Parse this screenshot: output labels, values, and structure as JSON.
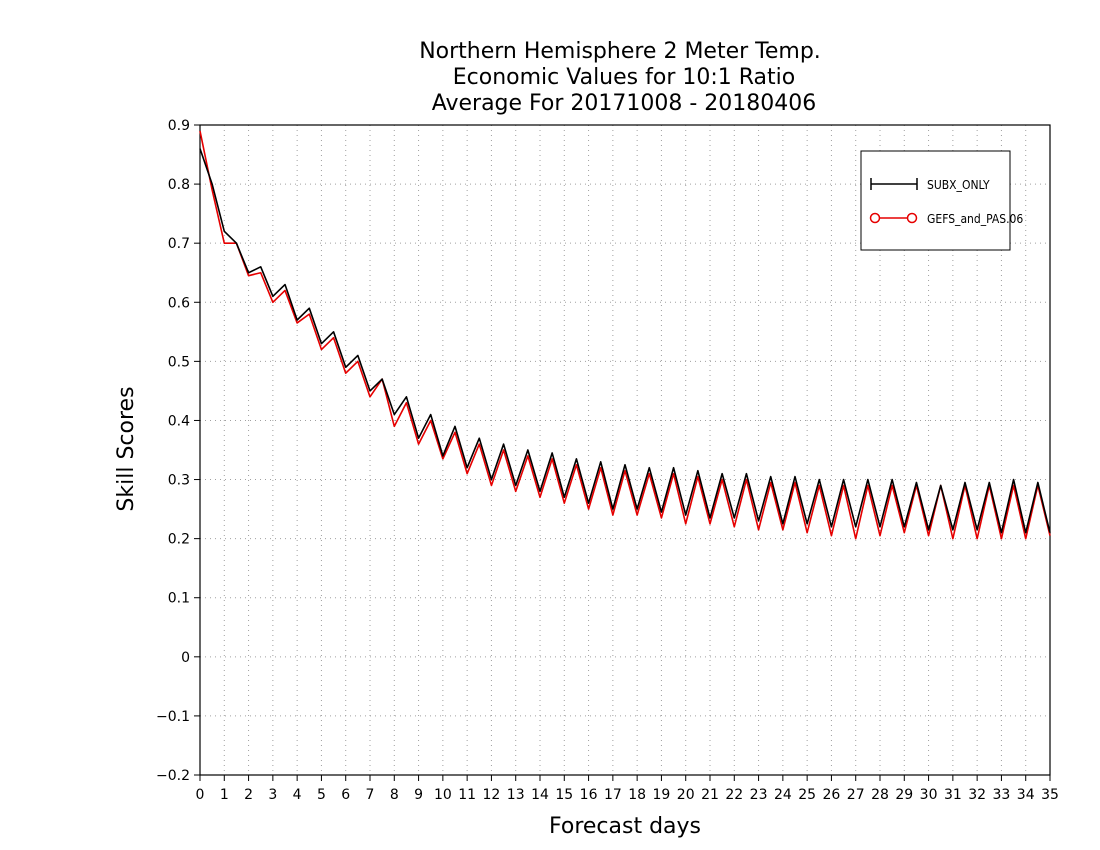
{
  "chart_data": {
    "type": "line",
    "title": [
      "Northern Hemisphere 2 Meter Temp.",
      "Economic Values for 10:1 Ratio",
      "Average For 20171008 - 20180406"
    ],
    "xlabel": "Forecast days",
    "ylabel": "Skill Scores",
    "xlim": [
      0,
      35
    ],
    "ylim": [
      -0.2,
      0.9
    ],
    "xticks": [
      0,
      1,
      2,
      3,
      4,
      5,
      6,
      7,
      8,
      9,
      10,
      11,
      12,
      13,
      14,
      15,
      16,
      17,
      18,
      19,
      20,
      21,
      22,
      23,
      24,
      25,
      26,
      27,
      28,
      29,
      30,
      31,
      32,
      33,
      34,
      35
    ],
    "yticks": [
      -0.2,
      -0.1,
      0,
      0.1,
      0.2,
      0.3,
      0.4,
      0.5,
      0.6,
      0.7,
      0.8,
      0.9
    ],
    "ytick_labels": [
      "−0.2",
      "−0.1",
      "0",
      "0.1",
      "0.2",
      "0.3",
      "0.4",
      "0.5",
      "0.6",
      "0.7",
      "0.8",
      "0.9"
    ],
    "grid": true,
    "legend_position": "top-right",
    "x": [
      0,
      0.5,
      1,
      1.5,
      2,
      2.5,
      3,
      3.5,
      4,
      4.5,
      5,
      5.5,
      6,
      6.5,
      7,
      7.5,
      8,
      8.5,
      9,
      9.5,
      10,
      10.5,
      11,
      11.5,
      12,
      12.5,
      13,
      13.5,
      14,
      14.5,
      15,
      15.5,
      16,
      16.5,
      17,
      17.5,
      18,
      18.5,
      19,
      19.5,
      20,
      20.5,
      21,
      21.5,
      22,
      22.5,
      23,
      23.5,
      24,
      24.5,
      25,
      25.5,
      26,
      26.5,
      27,
      27.5,
      28,
      28.5,
      29,
      29.5,
      30,
      30.5,
      31,
      31.5,
      32,
      32.5,
      33,
      33.5,
      34,
      34.5,
      35
    ],
    "series": [
      {
        "name": "SUBX_ONLY",
        "color": "#000000",
        "marker": "plus",
        "values": [
          0.86,
          0.8,
          0.72,
          0.7,
          0.65,
          0.66,
          0.61,
          0.63,
          0.57,
          0.59,
          0.53,
          0.55,
          0.49,
          0.51,
          0.45,
          0.47,
          0.41,
          0.44,
          0.37,
          0.41,
          0.34,
          0.39,
          0.32,
          0.37,
          0.3,
          0.36,
          0.29,
          0.35,
          0.28,
          0.345,
          0.27,
          0.335,
          0.26,
          0.33,
          0.25,
          0.325,
          0.25,
          0.32,
          0.245,
          0.32,
          0.24,
          0.315,
          0.235,
          0.31,
          0.235,
          0.31,
          0.23,
          0.305,
          0.225,
          0.305,
          0.225,
          0.3,
          0.22,
          0.3,
          0.22,
          0.3,
          0.22,
          0.3,
          0.22,
          0.295,
          0.215,
          0.29,
          0.215,
          0.295,
          0.215,
          0.295,
          0.21,
          0.3,
          0.21,
          0.295,
          0.21
        ]
      },
      {
        "name": "GEFS_and_PAS.06",
        "color": "#e60000",
        "marker": "circle",
        "values": [
          0.89,
          0.79,
          0.7,
          0.7,
          0.645,
          0.65,
          0.6,
          0.62,
          0.565,
          0.58,
          0.52,
          0.54,
          0.48,
          0.5,
          0.44,
          0.47,
          0.39,
          0.43,
          0.36,
          0.4,
          0.335,
          0.38,
          0.31,
          0.36,
          0.29,
          0.35,
          0.28,
          0.34,
          0.27,
          0.335,
          0.26,
          0.325,
          0.25,
          0.32,
          0.24,
          0.315,
          0.24,
          0.31,
          0.235,
          0.31,
          0.225,
          0.305,
          0.225,
          0.3,
          0.22,
          0.3,
          0.215,
          0.295,
          0.215,
          0.295,
          0.21,
          0.29,
          0.205,
          0.29,
          0.2,
          0.29,
          0.205,
          0.29,
          0.21,
          0.29,
          0.205,
          0.29,
          0.2,
          0.29,
          0.2,
          0.29,
          0.2,
          0.29,
          0.2,
          0.29,
          0.205
        ]
      }
    ]
  },
  "legend": {
    "items": [
      {
        "label": "SUBX_ONLY",
        "color": "#000000",
        "marker": "plus"
      },
      {
        "label": "GEFS_and_PAS.06",
        "color": "#e60000",
        "marker": "circle"
      }
    ]
  }
}
